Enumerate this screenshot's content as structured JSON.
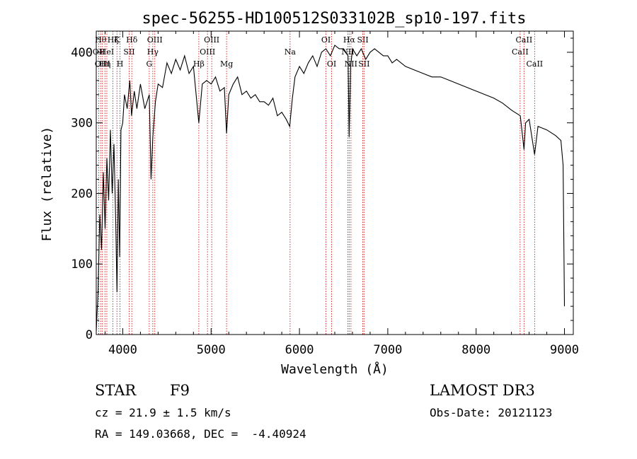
{
  "chart_data": {
    "type": "line",
    "title": "spec-56255-HD100512S033102B_sp10-197.fits",
    "xlabel": "Wavelength (Å)",
    "ylabel": "Flux (relative)",
    "xlim": [
      3700,
      9100
    ],
    "ylim": [
      0,
      430
    ],
    "xticks": [
      4000,
      5000,
      6000,
      7000,
      8000,
      9000
    ],
    "yticks": [
      0,
      100,
      200,
      300,
      400
    ],
    "grid": false,
    "series": [
      {
        "values": [
          [
            3700,
            5
          ],
          [
            3720,
            60
          ],
          [
            3740,
            170
          ],
          [
            3760,
            120
          ],
          [
            3780,
            230
          ],
          [
            3800,
            150
          ],
          [
            3820,
            250
          ],
          [
            3840,
            190
          ],
          [
            3860,
            290
          ],
          [
            3880,
            200
          ],
          [
            3900,
            270
          ],
          [
            3920,
            160
          ],
          [
            3935,
            60
          ],
          [
            3950,
            220
          ],
          [
            3965,
            110
          ],
          [
            3980,
            290
          ],
          [
            4000,
            300
          ],
          [
            4020,
            340
          ],
          [
            4050,
            320
          ],
          [
            4080,
            360
          ],
          [
            4100,
            310
          ],
          [
            4130,
            345
          ],
          [
            4160,
            320
          ],
          [
            4200,
            355
          ],
          [
            4250,
            320
          ],
          [
            4300,
            340
          ],
          [
            4320,
            220
          ],
          [
            4340,
            280
          ],
          [
            4370,
            330
          ],
          [
            4400,
            355
          ],
          [
            4450,
            350
          ],
          [
            4500,
            385
          ],
          [
            4550,
            370
          ],
          [
            4600,
            390
          ],
          [
            4650,
            375
          ],
          [
            4700,
            395
          ],
          [
            4750,
            370
          ],
          [
            4800,
            380
          ],
          [
            4861,
            300
          ],
          [
            4900,
            355
          ],
          [
            4950,
            360
          ],
          [
            5000,
            355
          ],
          [
            5050,
            365
          ],
          [
            5100,
            345
          ],
          [
            5150,
            350
          ],
          [
            5175,
            285
          ],
          [
            5200,
            340
          ],
          [
            5250,
            355
          ],
          [
            5300,
            365
          ],
          [
            5350,
            340
          ],
          [
            5400,
            345
          ],
          [
            5450,
            335
          ],
          [
            5500,
            340
          ],
          [
            5550,
            330
          ],
          [
            5600,
            330
          ],
          [
            5650,
            325
          ],
          [
            5700,
            335
          ],
          [
            5750,
            310
          ],
          [
            5800,
            315
          ],
          [
            5850,
            305
          ],
          [
            5890,
            295
          ],
          [
            5920,
            335
          ],
          [
            5950,
            365
          ],
          [
            6000,
            380
          ],
          [
            6050,
            370
          ],
          [
            6100,
            385
          ],
          [
            6150,
            395
          ],
          [
            6200,
            380
          ],
          [
            6250,
            400
          ],
          [
            6300,
            405
          ],
          [
            6350,
            395
          ],
          [
            6400,
            410
          ],
          [
            6450,
            405
          ],
          [
            6500,
            405
          ],
          [
            6550,
            395
          ],
          [
            6563,
            280
          ],
          [
            6580,
            380
          ],
          [
            6600,
            405
          ],
          [
            6650,
            395
          ],
          [
            6700,
            405
          ],
          [
            6750,
            390
          ],
          [
            6800,
            400
          ],
          [
            6850,
            405
          ],
          [
            6900,
            400
          ],
          [
            6950,
            395
          ],
          [
            7000,
            395
          ],
          [
            7050,
            385
          ],
          [
            7100,
            390
          ],
          [
            7200,
            380
          ],
          [
            7300,
            375
          ],
          [
            7400,
            370
          ],
          [
            7500,
            365
          ],
          [
            7600,
            365
          ],
          [
            7700,
            360
          ],
          [
            7800,
            355
          ],
          [
            7900,
            350
          ],
          [
            8000,
            345
          ],
          [
            8100,
            340
          ],
          [
            8200,
            335
          ],
          [
            8300,
            328
          ],
          [
            8400,
            318
          ],
          [
            8500,
            310
          ],
          [
            8542,
            262
          ],
          [
            8560,
            300
          ],
          [
            8600,
            305
          ],
          [
            8662,
            255
          ],
          [
            8700,
            295
          ],
          [
            8800,
            290
          ],
          [
            8900,
            282
          ],
          [
            8960,
            275
          ],
          [
            8985,
            240
          ],
          [
            9000,
            40
          ]
        ]
      }
    ],
    "line_markers": [
      {
        "wl": 3729,
        "label": "OII",
        "row": 1
      },
      {
        "wl": 3750,
        "label": "Hθ",
        "row": 0
      },
      {
        "wl": 3770,
        "label": "OIII",
        "row": 2
      },
      {
        "wl": 3798,
        "label": "Hη",
        "row": 2
      },
      {
        "wl": 3820,
        "label": "HeI",
        "row": 1
      },
      {
        "wl": 3889,
        "label": "Hζ",
        "row": 0
      },
      {
        "wl": 3934,
        "label": "K",
        "row": 0
      },
      {
        "wl": 3969,
        "label": "H",
        "row": 2
      },
      {
        "wl": 4072,
        "label": "SII",
        "row": 1
      },
      {
        "wl": 4102,
        "label": "Hδ",
        "row": 0
      },
      {
        "wl": 4300,
        "label": "G",
        "row": 2
      },
      {
        "wl": 4340,
        "label": "Hγ",
        "row": 1
      },
      {
        "wl": 4363,
        "label": "OIII",
        "row": 0
      },
      {
        "wl": 4861,
        "label": "Hβ",
        "row": 2
      },
      {
        "wl": 4959,
        "label": "OIII",
        "row": 1
      },
      {
        "wl": 5007,
        "label": "OIII",
        "row": 0
      },
      {
        "wl": 5175,
        "label": "Mg",
        "row": 2
      },
      {
        "wl": 5894,
        "label": "Na",
        "row": 1
      },
      {
        "wl": 6300,
        "label": "OI",
        "row": 0
      },
      {
        "wl": 6364,
        "label": "OI",
        "row": 2
      },
      {
        "wl": 6548,
        "label": "NII",
        "row": 1
      },
      {
        "wl": 6563,
        "label": "Hα",
        "row": 0
      },
      {
        "wl": 6583,
        "label": "NII",
        "row": 2
      },
      {
        "wl": 6717,
        "label": "SII",
        "row": 0
      },
      {
        "wl": 6731,
        "label": "SII",
        "row": 2
      },
      {
        "wl": 8498,
        "label": "CaII",
        "row": 1
      },
      {
        "wl": 8542,
        "label": "CaII",
        "row": 0
      },
      {
        "wl": 8662,
        "label": "CaII",
        "row": 2
      }
    ],
    "colors": {
      "spectrum": "#000000",
      "markers": "#cc0000"
    }
  },
  "info": {
    "object_class": "STAR",
    "subclass": "F9",
    "survey": "LAMOST DR3",
    "cz": "cz = 21.9 ± 1.5 km/s",
    "obs_date": "Obs-Date: 20121123",
    "radec": "RA = 149.03668, DEC =  -4.40924"
  }
}
